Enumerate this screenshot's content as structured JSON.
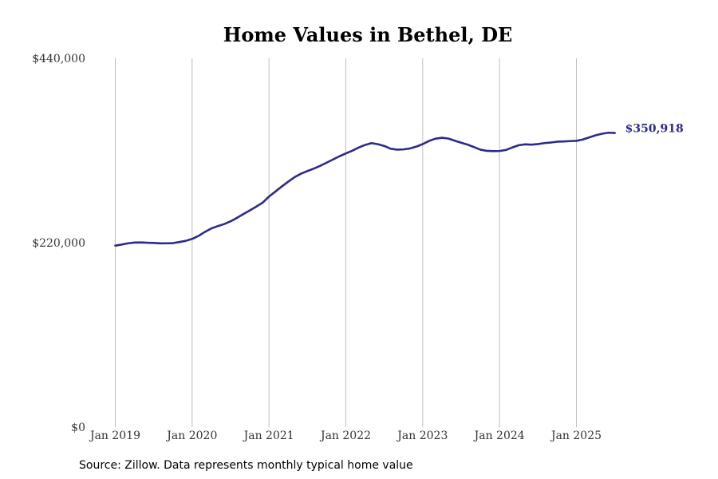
{
  "chart_data": {
    "type": "line",
    "title": "Home Values in Bethel, DE",
    "xlabel": "",
    "ylabel": "",
    "ylim": [
      0,
      440000
    ],
    "y_ticks": [
      {
        "value": 0,
        "label": "$0"
      },
      {
        "value": 220000,
        "label": "$220,000"
      },
      {
        "value": 440000,
        "label": "$440,000"
      }
    ],
    "x_ticks": [
      {
        "date": "2019-01",
        "label": "Jan 2019"
      },
      {
        "date": "2020-01",
        "label": "Jan 2020"
      },
      {
        "date": "2021-01",
        "label": "Jan 2021"
      },
      {
        "date": "2022-01",
        "label": "Jan 2022"
      },
      {
        "date": "2023-01",
        "label": "Jan 2023"
      },
      {
        "date": "2024-01",
        "label": "Jan 2024"
      },
      {
        "date": "2025-01",
        "label": "Jan 2025"
      }
    ],
    "grid": {
      "vertical": true,
      "horizontal": false
    },
    "end_label": "$350,918",
    "line_color": "#2e2a8c",
    "x": [
      "2019-01",
      "2019-02",
      "2019-03",
      "2019-04",
      "2019-05",
      "2019-06",
      "2019-07",
      "2019-08",
      "2019-09",
      "2019-10",
      "2019-11",
      "2019-12",
      "2020-01",
      "2020-02",
      "2020-03",
      "2020-04",
      "2020-05",
      "2020-06",
      "2020-07",
      "2020-08",
      "2020-09",
      "2020-10",
      "2020-11",
      "2020-12",
      "2021-01",
      "2021-02",
      "2021-03",
      "2021-04",
      "2021-05",
      "2021-06",
      "2021-07",
      "2021-08",
      "2021-09",
      "2021-10",
      "2021-11",
      "2021-12",
      "2022-01",
      "2022-02",
      "2022-03",
      "2022-04",
      "2022-05",
      "2022-06",
      "2022-07",
      "2022-08",
      "2022-09",
      "2022-10",
      "2022-11",
      "2022-12",
      "2023-01",
      "2023-02",
      "2023-03",
      "2023-04",
      "2023-05",
      "2023-06",
      "2023-07",
      "2023-08",
      "2023-09",
      "2023-10",
      "2023-11",
      "2023-12",
      "2024-01",
      "2024-02",
      "2024-03",
      "2024-04",
      "2024-05",
      "2024-06",
      "2024-07",
      "2024-08",
      "2024-09",
      "2024-10",
      "2024-11",
      "2024-12",
      "2025-01",
      "2025-02",
      "2025-03",
      "2025-04",
      "2025-05",
      "2025-06",
      "2025-07"
    ],
    "series": [
      {
        "values": [
          216500,
          217800,
          219300,
          220200,
          220300,
          219900,
          219700,
          219200,
          219300,
          219500,
          220800,
          222200,
          224500,
          228100,
          232900,
          237000,
          239800,
          242200,
          245500,
          249600,
          254200,
          258500,
          263000,
          267700,
          275000,
          281000,
          287100,
          292800,
          298200,
          302300,
          305500,
          308400,
          311700,
          315500,
          319300,
          323100,
          326500,
          329700,
          333500,
          336600,
          338800,
          337500,
          335400,
          332100,
          331000,
          331300,
          332400,
          334600,
          337600,
          341400,
          344100,
          345200,
          344300,
          341700,
          339300,
          337000,
          334100,
          331000,
          329600,
          329200,
          329400,
          330600,
          333600,
          336300,
          337300,
          337000,
          337700,
          338800,
          339500,
          340500,
          340800,
          341200,
          341500,
          343100,
          345600,
          348100,
          350000,
          351200,
          350918
        ]
      }
    ]
  },
  "footer": {
    "source": "Source: Zillow. Data represents monthly typical home value"
  }
}
